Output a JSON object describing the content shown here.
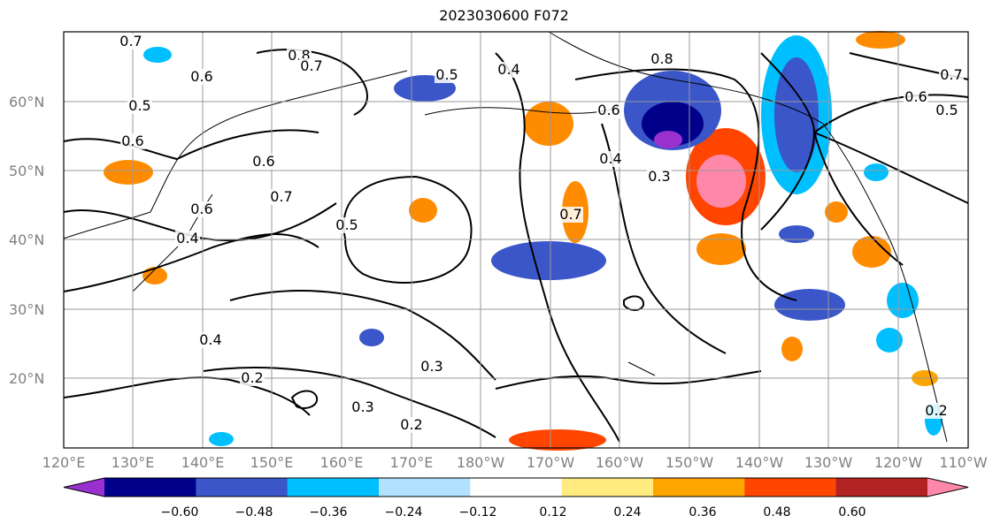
{
  "title": "2023030600 F072",
  "map": {
    "lat_labels": [
      "60°N",
      "50°N",
      "40°N",
      "30°N",
      "20°N"
    ],
    "lon_labels": [
      "120°E",
      "130°E",
      "140°E",
      "150°E",
      "160°E",
      "170°E",
      "180°W",
      "170°W",
      "160°W",
      "150°W",
      "140°W",
      "130°W",
      "120°W",
      "110°W"
    ],
    "contour_labels": [
      "0.7",
      "0.6",
      "0.5",
      "0.8",
      "0.7",
      "0.5",
      "0.4",
      "0.8",
      "0.6",
      "0.6",
      "0.6",
      "0.7",
      "0.6",
      "0.4",
      "0.5",
      "0.4",
      "0.2",
      "0.3",
      "0.3",
      "0.2",
      "0.7",
      "0.4",
      "0.3",
      "0.6",
      "0.7",
      "0.5",
      "0.2"
    ]
  },
  "colorbar": {
    "tick_labels": [
      "−0.60",
      "−0.48",
      "−0.36",
      "−0.24",
      "−0.12",
      "0.12",
      "0.24",
      "0.36",
      "0.48",
      "0.60"
    ],
    "colors": [
      "#9b30d0",
      "#00008b",
      "#3a56c8",
      "#00bfff",
      "#b0e2ff",
      "#ffffff",
      "#ffeb80",
      "#ffa500",
      "#ff4500",
      "#b22222",
      "#ff88aa"
    ]
  }
}
